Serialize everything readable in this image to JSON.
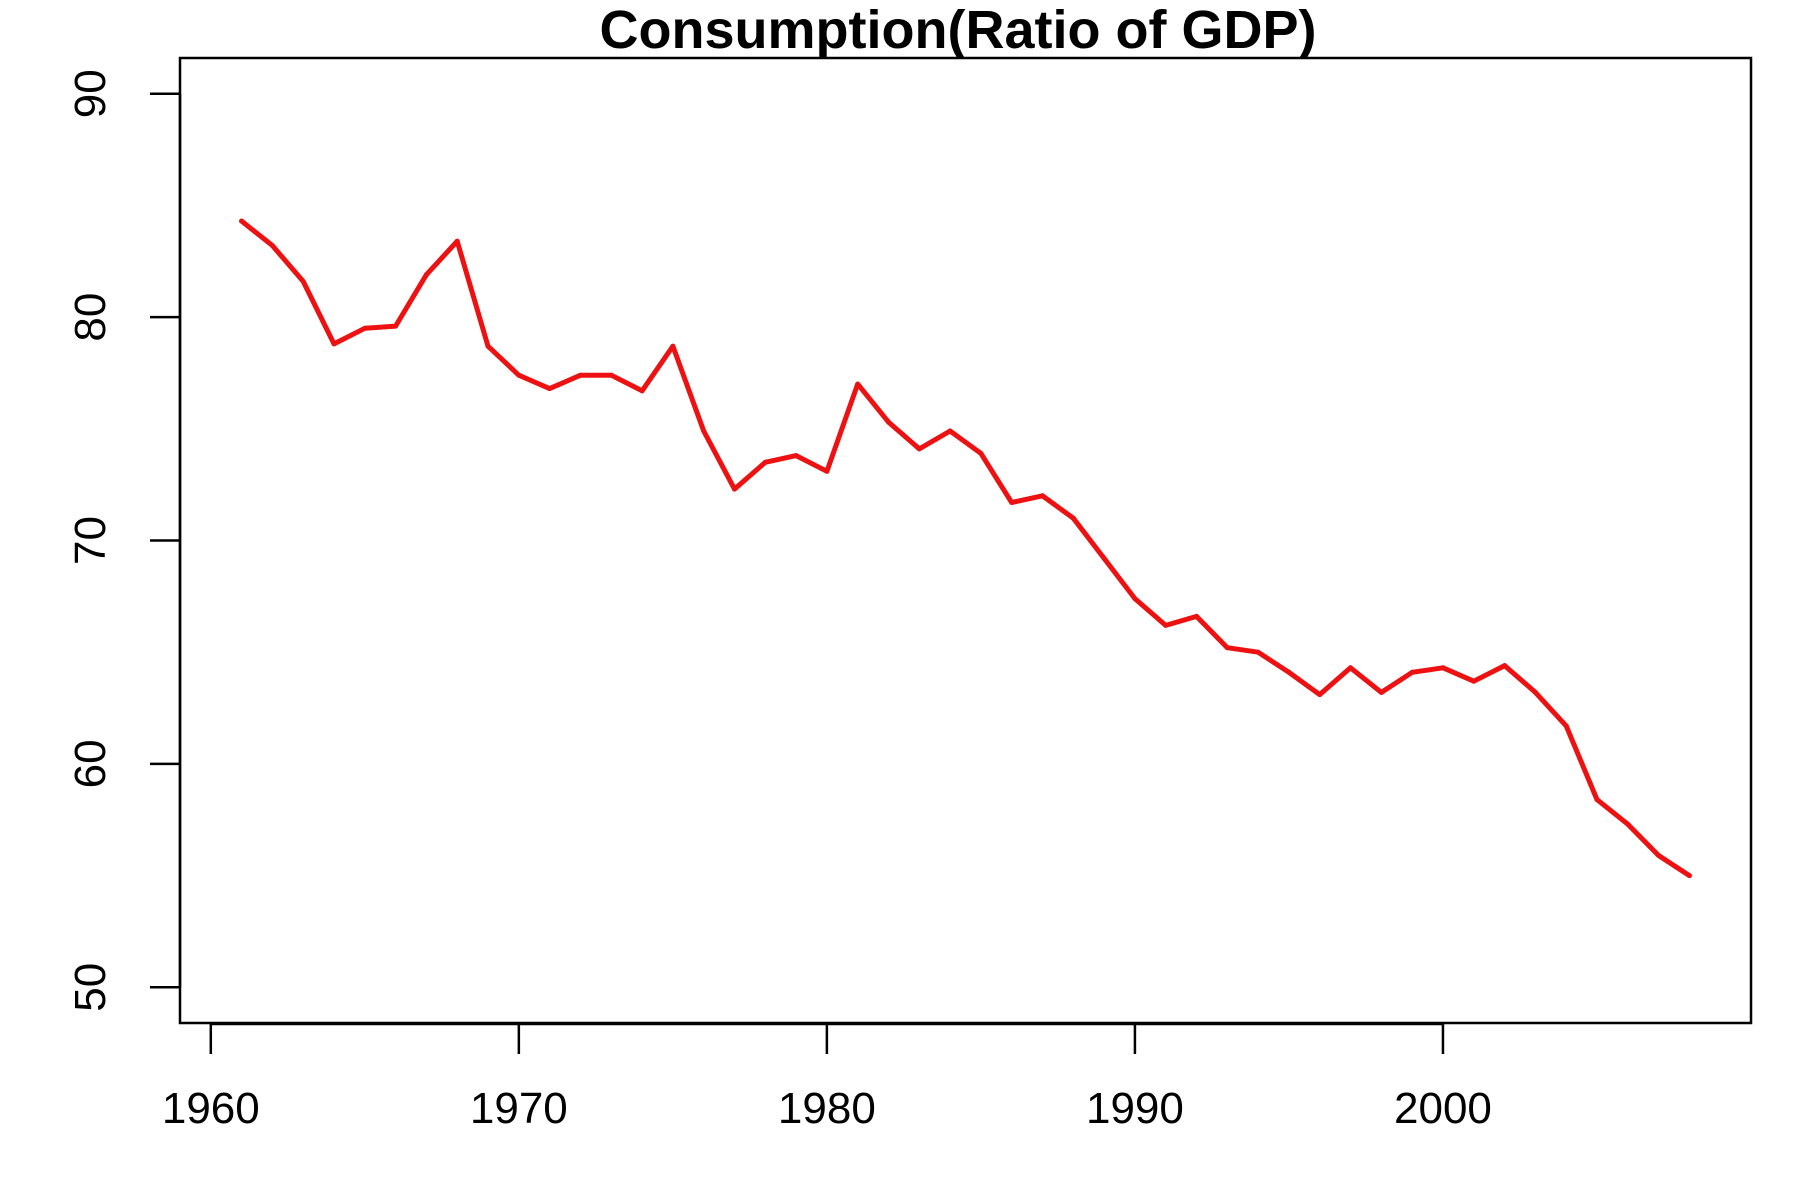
{
  "chart_data": {
    "type": "line",
    "title": "Consumption(Ratio of GDP)",
    "xlabel": "",
    "ylabel": "",
    "xlim": [
      1959,
      2010
    ],
    "ylim": [
      48.4,
      91.6
    ],
    "x_ticks": [
      1960,
      1970,
      1980,
      1990,
      2000
    ],
    "y_ticks": [
      50,
      60,
      70,
      80,
      90
    ],
    "grid": false,
    "series": [
      {
        "color": "#ee1111",
        "x": [
          1961,
          1962,
          1963,
          1964,
          1965,
          1966,
          1967,
          1968,
          1969,
          1970,
          1971,
          1972,
          1973,
          1974,
          1975,
          1976,
          1977,
          1978,
          1979,
          1980,
          1981,
          1982,
          1983,
          1984,
          1985,
          1986,
          1987,
          1988,
          1989,
          1990,
          1991,
          1992,
          1993,
          1994,
          1995,
          1996,
          1997,
          1998,
          1999,
          2000,
          2001,
          2002,
          2003,
          2004,
          2005,
          2006,
          2007,
          2008
        ],
        "values": [
          84.3,
          83.2,
          81.6,
          78.8,
          79.5,
          79.6,
          81.9,
          83.4,
          78.7,
          77.4,
          76.8,
          77.4,
          77.4,
          76.7,
          78.7,
          74.9,
          72.3,
          73.5,
          73.8,
          73.1,
          77.0,
          75.3,
          74.1,
          74.9,
          73.9,
          71.7,
          72.0,
          71.0,
          69.2,
          67.4,
          66.2,
          66.6,
          65.2,
          65.0,
          64.1,
          63.1,
          64.3,
          63.2,
          64.1,
          64.3,
          63.7,
          64.4,
          63.2,
          61.7,
          58.4,
          57.3,
          55.9,
          55.0
        ]
      }
    ]
  }
}
